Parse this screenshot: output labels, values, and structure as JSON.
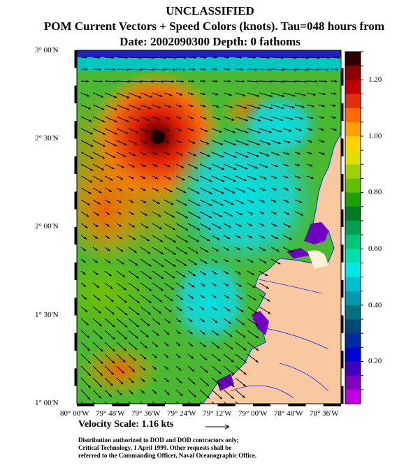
{
  "header": {
    "classification": "UNCLASSIFIED",
    "line2": "POM Current Vectors + Speed Colors (knots).  Tau=048 hours from",
    "line3": "Date: 2002090300  Depth: 0 fathoms"
  },
  "map": {
    "lat_labels": [
      "3° 00'N",
      "2° 30'N",
      "2° 00'N",
      "1° 30'N",
      "1° 00'N"
    ],
    "lon_labels": [
      "80° 00'W",
      "79° 48'W",
      "79° 36'W",
      "79° 24'W",
      "79° 12'W",
      "79° 00'W",
      "78° 48'W",
      "78° 36'W"
    ],
    "colors": {
      "land": "#f8c8a0",
      "water_border": "#0000ff",
      "frame": "#000000"
    }
  },
  "colorbar": {
    "labels": [
      "1.20",
      "1.00",
      "0.80",
      "0.60",
      "0.40",
      "0.20"
    ],
    "colors": [
      "#2a0000",
      "#8b0000",
      "#c00000",
      "#e03010",
      "#ff6a00",
      "#ffa000",
      "#ffd200",
      "#e0e000",
      "#a0d000",
      "#60c000",
      "#20a000",
      "#007a20",
      "#00a050",
      "#00c878",
      "#00e0b0",
      "#00e8e8",
      "#00c0d0",
      "#0098b0",
      "#007080",
      "#004878",
      "#0028a0",
      "#0000d0",
      "#4000c0",
      "#8000c0",
      "#c000e0"
    ]
  },
  "scale": {
    "label": "Velocity Scale:  1.16 kts"
  },
  "footer": {
    "lines": [
      "Distribution authorized to DOD and DOD contractors only;",
      "Critical Technology, 1 April 1999.  Other requests shall be",
      "referred to the Commanding Officer, Naval Oceanographic Office."
    ]
  }
}
